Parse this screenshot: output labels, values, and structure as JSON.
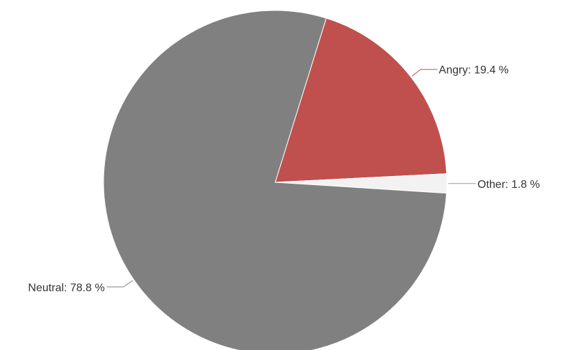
{
  "chart_data": {
    "type": "pie",
    "title": "",
    "legend": "none",
    "slices": [
      {
        "name": "Angry",
        "value": 19.4,
        "label": "Angry: 19.4 %",
        "color": "#c0504d"
      },
      {
        "name": "Other",
        "value": 1.8,
        "label": "Other: 1.8 %",
        "color": "#f2f2f2"
      },
      {
        "name": "Neutral",
        "value": 78.8,
        "label": "Neutral: 78.8 %",
        "color": "#808080"
      }
    ]
  }
}
